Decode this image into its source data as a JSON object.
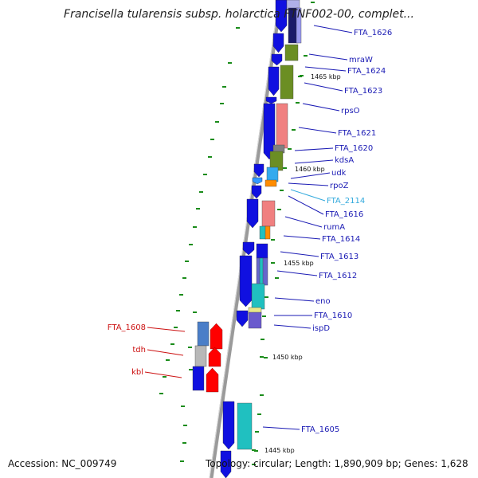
{
  "title": "Francisella tularensis subsp. holarctica FTNF002-00, complet...",
  "footer": {
    "accession": "Accession: NC_009749",
    "topology": "Topology: circular; Length: 1,890,909 bp; Genes: 1,628"
  },
  "colors": {
    "forward_gene": "#1010e0",
    "reverse_gene": "#ff0000",
    "label_default": "#1a1ab4",
    "label_reverse": "#cc1111",
    "label_highlight": "#33aadd",
    "tick": "#1a8c1a",
    "backbone": "#9a9a9a"
  },
  "scale_labels": [
    "1465 kbp",
    "1460 kbp",
    "1455 kbp",
    "1450 kbp",
    "1445 kbp"
  ],
  "gene_labels": [
    {
      "text": "FTA_1626",
      "style": "default"
    },
    {
      "text": "mraW",
      "style": "default"
    },
    {
      "text": "FTA_1624",
      "style": "default"
    },
    {
      "text": "FTA_1623",
      "style": "default"
    },
    {
      "text": "rpsO",
      "style": "default"
    },
    {
      "text": "FTA_1621",
      "style": "default"
    },
    {
      "text": "FTA_1620",
      "style": "default"
    },
    {
      "text": "kdsA",
      "style": "default"
    },
    {
      "text": "udk",
      "style": "default"
    },
    {
      "text": "rpoZ",
      "style": "default"
    },
    {
      "text": "FTA_2114",
      "style": "highlight"
    },
    {
      "text": "FTA_1616",
      "style": "default"
    },
    {
      "text": "rumA",
      "style": "default"
    },
    {
      "text": "FTA_1614",
      "style": "default"
    },
    {
      "text": "FTA_1613",
      "style": "default"
    },
    {
      "text": "FTA_1612",
      "style": "default"
    },
    {
      "text": "eno",
      "style": "default"
    },
    {
      "text": "FTA_1610",
      "style": "default"
    },
    {
      "text": "ispD",
      "style": "default"
    },
    {
      "text": "FTA_1608",
      "style": "reverse"
    },
    {
      "text": "tdh",
      "style": "reverse"
    },
    {
      "text": "kbl",
      "style": "reverse"
    },
    {
      "text": "FTA_1605",
      "style": "default"
    }
  ]
}
